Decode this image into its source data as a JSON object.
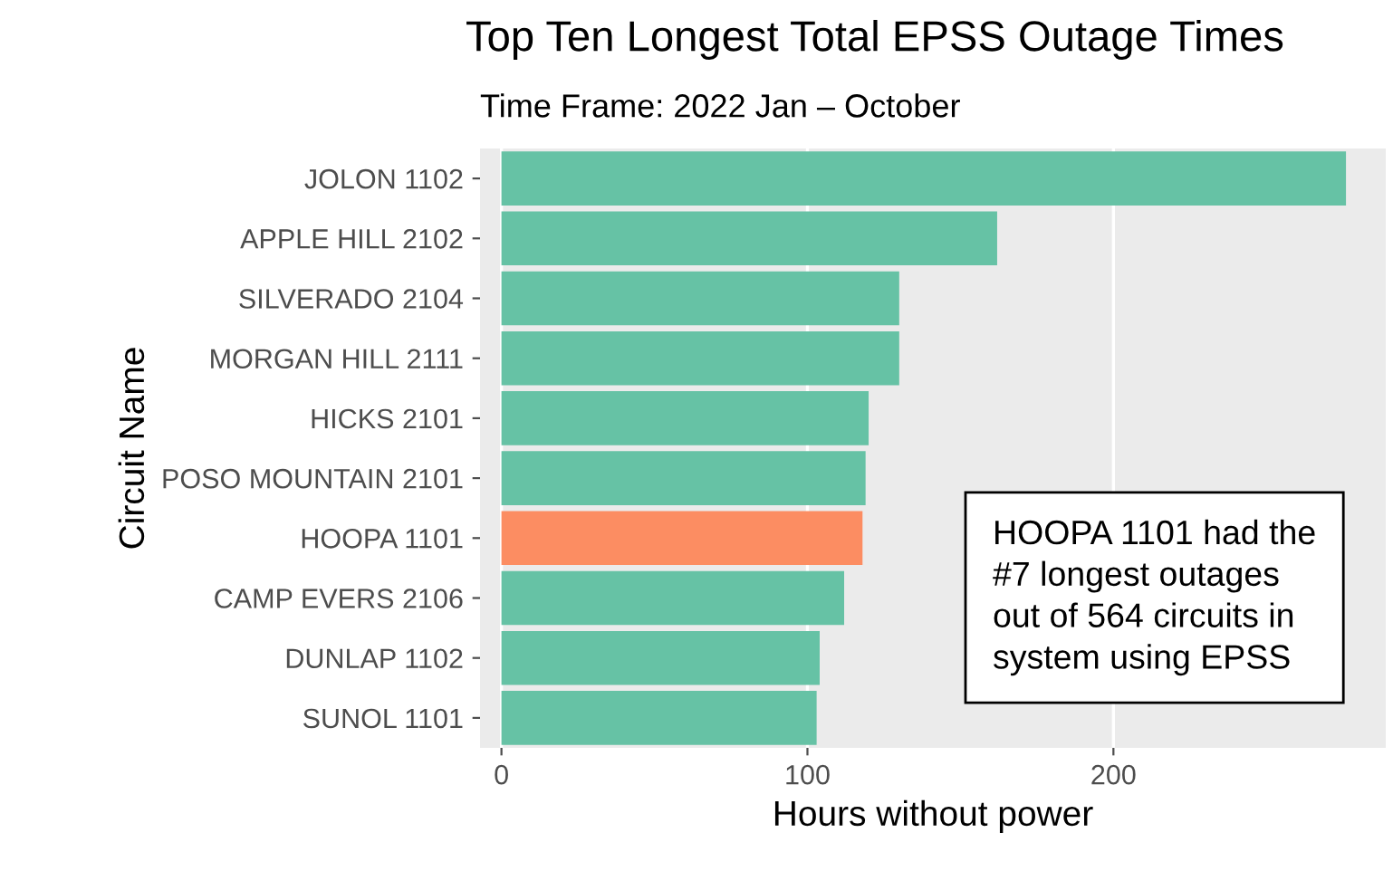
{
  "chart_data": {
    "type": "bar",
    "orientation": "horizontal",
    "title": "Top Ten Longest Total EPSS Outage Times",
    "subtitle": "Time Frame: 2022 Jan – October",
    "xlabel": "Hours without power",
    "ylabel": "Circuit Name",
    "categories": [
      "JOLON 1102",
      "APPLE HILL 2102",
      "SILVERADO 2104",
      "MORGAN HILL 2111",
      "HICKS 2101",
      "POSO MOUNTAIN 2101",
      "HOOPA 1101",
      "CAMP EVERS 2106",
      "DUNLAP 1102",
      "SUNOL 1101"
    ],
    "values": [
      276,
      162,
      130,
      130,
      120,
      119,
      118,
      112,
      104,
      103
    ],
    "colors": [
      "#66c2a5",
      "#66c2a5",
      "#66c2a5",
      "#66c2a5",
      "#66c2a5",
      "#66c2a5",
      "#fc8d62",
      "#66c2a5",
      "#66c2a5",
      "#66c2a5"
    ],
    "xlim": [
      -7,
      289
    ],
    "xticks": [
      0,
      100,
      200
    ],
    "grid": "x",
    "annotations": [
      "HOOPA 1101 had the #7 longest outages out of 564 circuits in system using EPSS"
    ]
  }
}
